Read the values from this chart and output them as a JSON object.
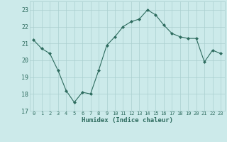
{
  "x": [
    0,
    1,
    2,
    3,
    4,
    5,
    6,
    7,
    8,
    9,
    10,
    11,
    12,
    13,
    14,
    15,
    16,
    17,
    18,
    19,
    20,
    21,
    22,
    23
  ],
  "y": [
    21.2,
    20.7,
    20.4,
    19.4,
    18.2,
    17.5,
    18.1,
    18.0,
    19.4,
    20.9,
    21.4,
    22.0,
    22.3,
    22.45,
    23.0,
    22.7,
    22.1,
    21.6,
    21.4,
    21.3,
    21.3,
    19.9,
    20.6,
    20.4
  ],
  "xlabel": "Humidex (Indice chaleur)",
  "line_color": "#2d6b5e",
  "marker": "D",
  "marker_size": 2,
  "bg_color": "#cceaea",
  "grid_color": "#aacfcf",
  "text_color": "#2d6b5e",
  "ylim": [
    17,
    23.5
  ],
  "xlim": [
    -0.5,
    23.5
  ],
  "yticks": [
    17,
    18,
    19,
    20,
    21,
    22,
    23
  ],
  "xticks": [
    0,
    1,
    2,
    3,
    4,
    5,
    6,
    7,
    8,
    9,
    10,
    11,
    12,
    13,
    14,
    15,
    16,
    17,
    18,
    19,
    20,
    21,
    22,
    23
  ]
}
